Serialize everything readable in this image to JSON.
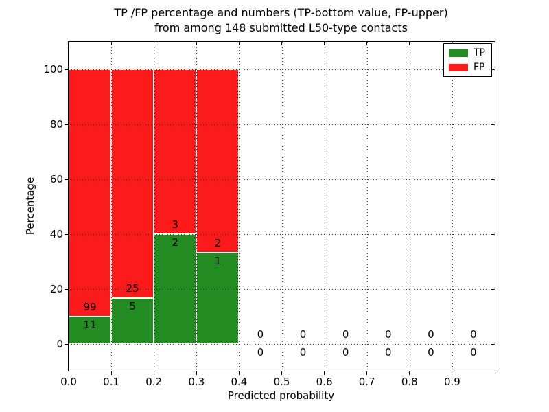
{
  "legend": [
    {
      "label": "TP",
      "color": "#228b22"
    },
    {
      "label": "FP",
      "color": "#fb1b1b"
    }
  ],
  "chart_data": {
    "type": "bar",
    "stacked": true,
    "title": "TP /FP percentage and numbers (TP-bottom value, FP-upper)\nfrom among 148 submitted L50-type contacts",
    "title_lines": [
      "TP /FP percentage and numbers (TP-bottom value, FP-upper)",
      "from among 148 submitted L50-type contacts"
    ],
    "total_submitted": 148,
    "xlabel": "Predicted probability",
    "ylabel": "Percentage",
    "xlim": [
      0.0,
      1.0
    ],
    "ylim": [
      -10,
      110
    ],
    "grid": true,
    "legend_position": "upper right",
    "bin_width": 0.1,
    "categories": [
      "0.0-0.1",
      "0.1-0.2",
      "0.2-0.3",
      "0.3-0.4",
      "0.4-0.5",
      "0.5-0.6",
      "0.6-0.7",
      "0.7-0.8",
      "0.8-0.9",
      "0.9-1.0"
    ],
    "x_ticks": [
      "0.0",
      "0.1",
      "0.2",
      "0.3",
      "0.4",
      "0.5",
      "0.6",
      "0.7",
      "0.8",
      "0.9"
    ],
    "y_ticks": [
      0,
      20,
      40,
      60,
      80,
      100
    ],
    "series": [
      {
        "name": "TP",
        "counts": [
          11,
          5,
          2,
          1,
          0,
          0,
          0,
          0,
          0,
          0
        ],
        "percentages": [
          10.0,
          16.667,
          40.0,
          33.333,
          0,
          0,
          0,
          0,
          0,
          0
        ]
      },
      {
        "name": "FP",
        "counts": [
          99,
          25,
          3,
          2,
          0,
          0,
          0,
          0,
          0,
          0
        ],
        "percentages": [
          90.0,
          83.333,
          60.0,
          66.667,
          0,
          0,
          0,
          0,
          0,
          0
        ]
      }
    ],
    "colors": {
      "tp": "#228b22",
      "fp": "#fb1b1b",
      "bar_edge": "#ffffff",
      "axis": "#000000"
    }
  }
}
